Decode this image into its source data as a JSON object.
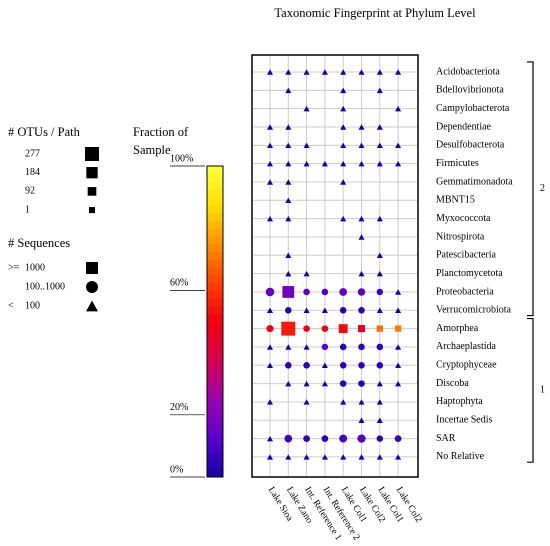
{
  "chart_data": {
    "type": "fingerprint",
    "title": "Taxonomic Fingerprint at Phylum Level",
    "otu_title": "# OTUs / Path",
    "otu_legend": [
      277,
      184,
      92,
      1
    ],
    "sequences_title": "# Sequences",
    "sequences_legend": [
      {
        "op": ">=",
        "value": 1000
      },
      {
        "label": "100..1000",
        "value": 100
      },
      {
        "op": "<",
        "value": 100
      }
    ],
    "colorscale": {
      "title": [
        "Fraction of",
        "Sample"
      ],
      "lim": [
        0,
        100
      ],
      "ticks": [
        {
          "value": 0,
          "label": "0%"
        },
        {
          "value": 20,
          "label": "20%"
        },
        {
          "value": 60,
          "label": "60%"
        },
        {
          "value": 100,
          "label": "100%"
        }
      ],
      "colors": [
        "#1400a8",
        "#5a00cc",
        "#9a00b0",
        "#d40050",
        "#f00010",
        "#ff4000",
        "#ff9000",
        "#ffe000",
        "#ffff40"
      ]
    },
    "columns": [
      "Lake Sioa",
      "Lake Zano",
      "Int. Reference 1",
      "Int. Reference 2",
      "Lake Col1",
      "Lake Col2",
      "Lake Col1",
      "Lake Col2"
    ],
    "groups": [
      {
        "label": "2",
        "rows": [
          {
            "name": "Acidobacteriota",
            "cells": [
              [
                0.3,
                3,
                20
              ],
              [
                0.3,
                3,
                20
              ],
              [
                0.3,
                3,
                20
              ],
              [
                0.3,
                3,
                20
              ],
              [
                0.3,
                3,
                20
              ],
              [
                0.3,
                3,
                20
              ],
              [
                0.3,
                3,
                20
              ],
              [
                0.3,
                3,
                20
              ]
            ]
          },
          {
            "name": "Bdellovibrionota",
            "cells": [
              null,
              [
                0.3,
                3,
                20
              ],
              null,
              null,
              [
                0.3,
                3,
                20
              ],
              null,
              [
                0.3,
                3,
                20
              ],
              null
            ]
          },
          {
            "name": "Campylobacterota",
            "cells": [
              null,
              null,
              [
                0.3,
                3,
                20
              ],
              null,
              [
                0.3,
                3,
                20
              ],
              null,
              null,
              [
                0.3,
                3,
                20
              ]
            ]
          },
          {
            "name": "Dependentiae",
            "cells": [
              [
                0.3,
                3,
                20
              ],
              [
                0.3,
                3,
                20
              ],
              null,
              null,
              [
                0.3,
                3,
                20
              ],
              [
                0.3,
                3,
                20
              ],
              [
                0.3,
                3,
                20
              ],
              null
            ]
          },
          {
            "name": "Desulfobacterota",
            "cells": [
              [
                0.3,
                3,
                20
              ],
              [
                0.3,
                3,
                20
              ],
              [
                0.3,
                3,
                20
              ],
              null,
              [
                0.3,
                3,
                20
              ],
              [
                0.3,
                3,
                20
              ],
              [
                0.3,
                3,
                20
              ],
              [
                0.3,
                3,
                20
              ]
            ]
          },
          {
            "name": "Firmicutes",
            "cells": [
              [
                0.3,
                3,
                20
              ],
              [
                0.3,
                3,
                20
              ],
              [
                0.3,
                3,
                20
              ],
              [
                0.3,
                3,
                20
              ],
              [
                0.3,
                3,
                20
              ],
              [
                0.3,
                3,
                20
              ],
              [
                0.3,
                3,
                20
              ],
              [
                0.3,
                3,
                20
              ]
            ]
          },
          {
            "name": "Gemmatimonadota",
            "cells": [
              [
                0.3,
                3,
                20
              ],
              [
                0.3,
                3,
                20
              ],
              null,
              null,
              [
                0.3,
                3,
                20
              ],
              null,
              null,
              null
            ]
          },
          {
            "name": "MBNT15",
            "cells": [
              null,
              [
                0.3,
                3,
                20
              ],
              null,
              null,
              null,
              null,
              null,
              null
            ]
          },
          {
            "name": "Myxococcota",
            "cells": [
              [
                0.3,
                3,
                20
              ],
              [
                0.3,
                3,
                20
              ],
              null,
              null,
              [
                0.3,
                3,
                20
              ],
              [
                0.3,
                3,
                20
              ],
              [
                0.3,
                3,
                20
              ],
              null
            ]
          },
          {
            "name": "Nitrospirota",
            "cells": [
              null,
              null,
              null,
              null,
              null,
              [
                0.3,
                3,
                20
              ],
              null,
              null
            ]
          },
          {
            "name": "Patescibacteria",
            "cells": [
              null,
              [
                0.3,
                3,
                20
              ],
              null,
              null,
              null,
              null,
              [
                0.3,
                3,
                20
              ],
              null
            ]
          },
          {
            "name": "Planctomycetota",
            "cells": [
              null,
              [
                0.3,
                3,
                20
              ],
              [
                0.3,
                3,
                20
              ],
              null,
              null,
              [
                0.3,
                3,
                20
              ],
              [
                0.3,
                3,
                20
              ],
              null
            ]
          },
          {
            "name": "Proteobacteria",
            "cells": [
              [
                15,
                90,
                700
              ],
              [
                18,
                200,
                2500
              ],
              [
                12,
                20,
                200
              ],
              [
                10,
                20,
                200
              ],
              [
                14,
                60,
                600
              ],
              [
                13,
                50,
                500
              ],
              [
                8,
                15,
                150
              ],
              [
                0.3,
                3,
                20
              ]
            ]
          },
          {
            "name": "Verrucomicrobiota",
            "cells": [
              [
                0.3,
                3,
                20
              ],
              [
                4,
                20,
                200
              ],
              [
                0.3,
                3,
                20
              ],
              [
                0.3,
                3,
                20
              ],
              [
                4,
                20,
                200
              ],
              [
                4,
                20,
                200
              ],
              [
                0.3,
                3,
                20
              ],
              [
                0.3,
                3,
                20
              ]
            ]
          }
        ]
      },
      {
        "label": "1",
        "rows": [
          {
            "name": "Amorphea",
            "cells": [
              [
                50,
                40,
                800
              ],
              [
                55,
                277,
                5000
              ],
              [
                48,
                20,
                300
              ],
              [
                50,
                20,
                300
              ],
              [
                52,
                100,
                1500
              ],
              [
                45,
                40,
                1200
              ],
              [
                70,
                15,
                1100
              ],
              [
                72,
                15,
                1100
              ]
            ]
          },
          {
            "name": "Archaeplastida",
            "cells": [
              [
                0.3,
                3,
                20
              ],
              [
                0.3,
                3,
                20
              ],
              [
                0.3,
                3,
                20
              ],
              [
                12,
                15,
                150
              ],
              [
                4,
                20,
                200
              ],
              [
                4,
                20,
                200
              ],
              [
                4,
                20,
                200
              ],
              [
                0.3,
                3,
                20
              ]
            ]
          },
          {
            "name": "Cryptophyceae",
            "cells": [
              [
                0.3,
                3,
                20
              ],
              [
                4,
                20,
                200
              ],
              [
                4,
                20,
                200
              ],
              [
                0.3,
                3,
                20
              ],
              [
                4,
                20,
                200
              ],
              [
                4,
                20,
                200
              ],
              [
                4,
                20,
                200
              ],
              [
                0.3,
                3,
                20
              ]
            ]
          },
          {
            "name": "Discoba",
            "cells": [
              null,
              [
                0.3,
                3,
                20
              ],
              [
                0.3,
                3,
                20
              ],
              [
                0.3,
                3,
                20
              ],
              [
                4,
                20,
                200
              ],
              [
                4,
                20,
                200
              ],
              [
                0.3,
                3,
                20
              ],
              [
                0.3,
                3,
                20
              ]
            ]
          },
          {
            "name": "Haptophyta",
            "cells": [
              [
                0.3,
                3,
                20
              ],
              null,
              [
                0.3,
                3,
                20
              ],
              null,
              [
                0.3,
                3,
                20
              ],
              [
                0.3,
                3,
                20
              ],
              [
                0.3,
                3,
                20
              ],
              null
            ]
          },
          {
            "name": "Incertae Sedis",
            "cells": [
              null,
              null,
              null,
              null,
              null,
              [
                0.3,
                3,
                20
              ],
              [
                0.3,
                3,
                20
              ],
              null
            ]
          },
          {
            "name": "SAR",
            "cells": [
              [
                0.3,
                3,
                20
              ],
              [
                8,
                60,
                600
              ],
              [
                5,
                25,
                250
              ],
              [
                5,
                25,
                250
              ],
              [
                10,
                70,
                700
              ],
              [
                12,
                80,
                800
              ],
              [
                5,
                15,
                150
              ],
              [
                6,
                25,
                250
              ]
            ]
          },
          {
            "name": "No Relative",
            "cells": [
              [
                0.3,
                3,
                20
              ],
              [
                0.3,
                3,
                20
              ],
              [
                0.3,
                3,
                20
              ],
              [
                0.3,
                3,
                20
              ],
              [
                0.3,
                3,
                20
              ],
              [
                0.3,
                3,
                20
              ],
              [
                0.3,
                3,
                20
              ],
              [
                0.3,
                3,
                20
              ]
            ]
          }
        ]
      }
    ]
  }
}
